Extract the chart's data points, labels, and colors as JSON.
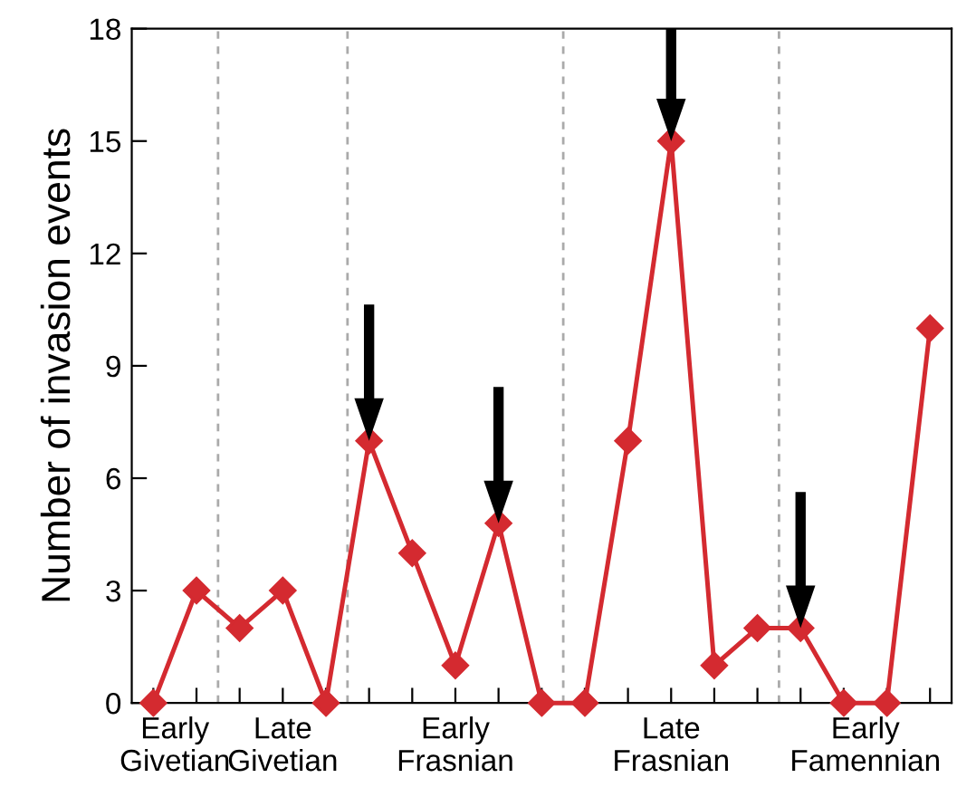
{
  "chart_data": {
    "type": "line",
    "ylabel": "Number of invasion events",
    "categories": [
      null,
      null,
      null,
      null,
      null,
      null,
      null,
      null,
      null,
      null,
      null,
      null,
      null,
      null,
      null,
      null,
      null,
      null,
      null
    ],
    "series": [
      {
        "color": "#d42a30",
        "values": [
          0,
          3,
          2,
          3,
          0,
          7,
          4,
          1,
          4.8,
          0,
          0,
          7,
          15,
          1,
          2,
          2,
          0,
          0,
          10
        ]
      }
    ],
    "annotations": [
      "Early\nGivetian",
      "Late\nGivetian",
      "Early\nFrasnian",
      "Late\nFrasnian",
      "Early\nFamennian"
    ],
    "ylim": [
      0,
      18
    ],
    "yticks": [
      0,
      3,
      6,
      9,
      12,
      15,
      18
    ],
    "marker": "diamond",
    "line_style": "solid",
    "grid": false,
    "legend": false
  }
}
